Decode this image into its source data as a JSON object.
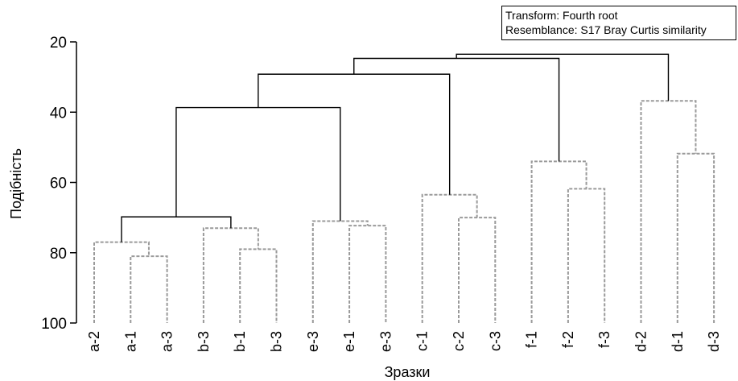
{
  "chart_data": {
    "type": "dendrogram",
    "xlabel": "Зразки",
    "ylabel": "Подібність",
    "ylim": [
      20,
      100
    ],
    "y_ticks": [
      20,
      40,
      60,
      80,
      100
    ],
    "y_inverted": true,
    "legend_placement": "top-right",
    "annotation_lines": [
      "Transform: Fourth root",
      "Resemblance: S17 Bray Curtis similarity"
    ],
    "leaves": [
      "a-2",
      "a-1",
      "a-3",
      "b-3",
      "b-1",
      "b-3",
      "e-3",
      "e-1",
      "e-3",
      "c-1",
      "c-2",
      "c-3",
      "f-1",
      "f-2",
      "f-3",
      "d-2",
      "d-1",
      "d-3"
    ],
    "merges": [
      {
        "id": "m1",
        "left": 1,
        "right": 2,
        "similarity": 81.0,
        "style": "dashed"
      },
      {
        "id": "m2",
        "left": 0,
        "right": "m1",
        "similarity": 77.0,
        "style": "dashed"
      },
      {
        "id": "m3",
        "left": 4,
        "right": 5,
        "similarity": 79.0,
        "style": "dashed"
      },
      {
        "id": "m4",
        "left": 3,
        "right": "m3",
        "similarity": 73.0,
        "style": "dashed"
      },
      {
        "id": "m5",
        "left": "m2",
        "right": "m4",
        "similarity": 69.8,
        "style": "solid"
      },
      {
        "id": "m6",
        "left": 7,
        "right": 8,
        "similarity": 72.3,
        "style": "dashed"
      },
      {
        "id": "m7",
        "left": 6,
        "right": "m6",
        "similarity": 71.0,
        "style": "dashed"
      },
      {
        "id": "m8",
        "left": "m5",
        "right": "m7",
        "similarity": 38.7,
        "style": "solid"
      },
      {
        "id": "m9",
        "left": 10,
        "right": 11,
        "similarity": 70.0,
        "style": "dashed"
      },
      {
        "id": "m10",
        "left": 9,
        "right": "m9",
        "similarity": 63.5,
        "style": "dashed"
      },
      {
        "id": "m11",
        "left": "m8",
        "right": "m10",
        "similarity": 29.2,
        "style": "solid"
      },
      {
        "id": "m12",
        "left": 13,
        "right": 14,
        "similarity": 61.8,
        "style": "dashed"
      },
      {
        "id": "m13",
        "left": 12,
        "right": "m12",
        "similarity": 54.0,
        "style": "dashed"
      },
      {
        "id": "m14",
        "left": "m11",
        "right": "m13",
        "similarity": 24.7,
        "style": "solid"
      },
      {
        "id": "m15",
        "left": 16,
        "right": 17,
        "similarity": 51.8,
        "style": "dashed"
      },
      {
        "id": "m16",
        "left": 15,
        "right": "m15",
        "similarity": 36.8,
        "style": "dashed"
      },
      {
        "id": "m17",
        "left": "m14",
        "right": "m16",
        "similarity": 23.5,
        "style": "solid"
      }
    ]
  }
}
